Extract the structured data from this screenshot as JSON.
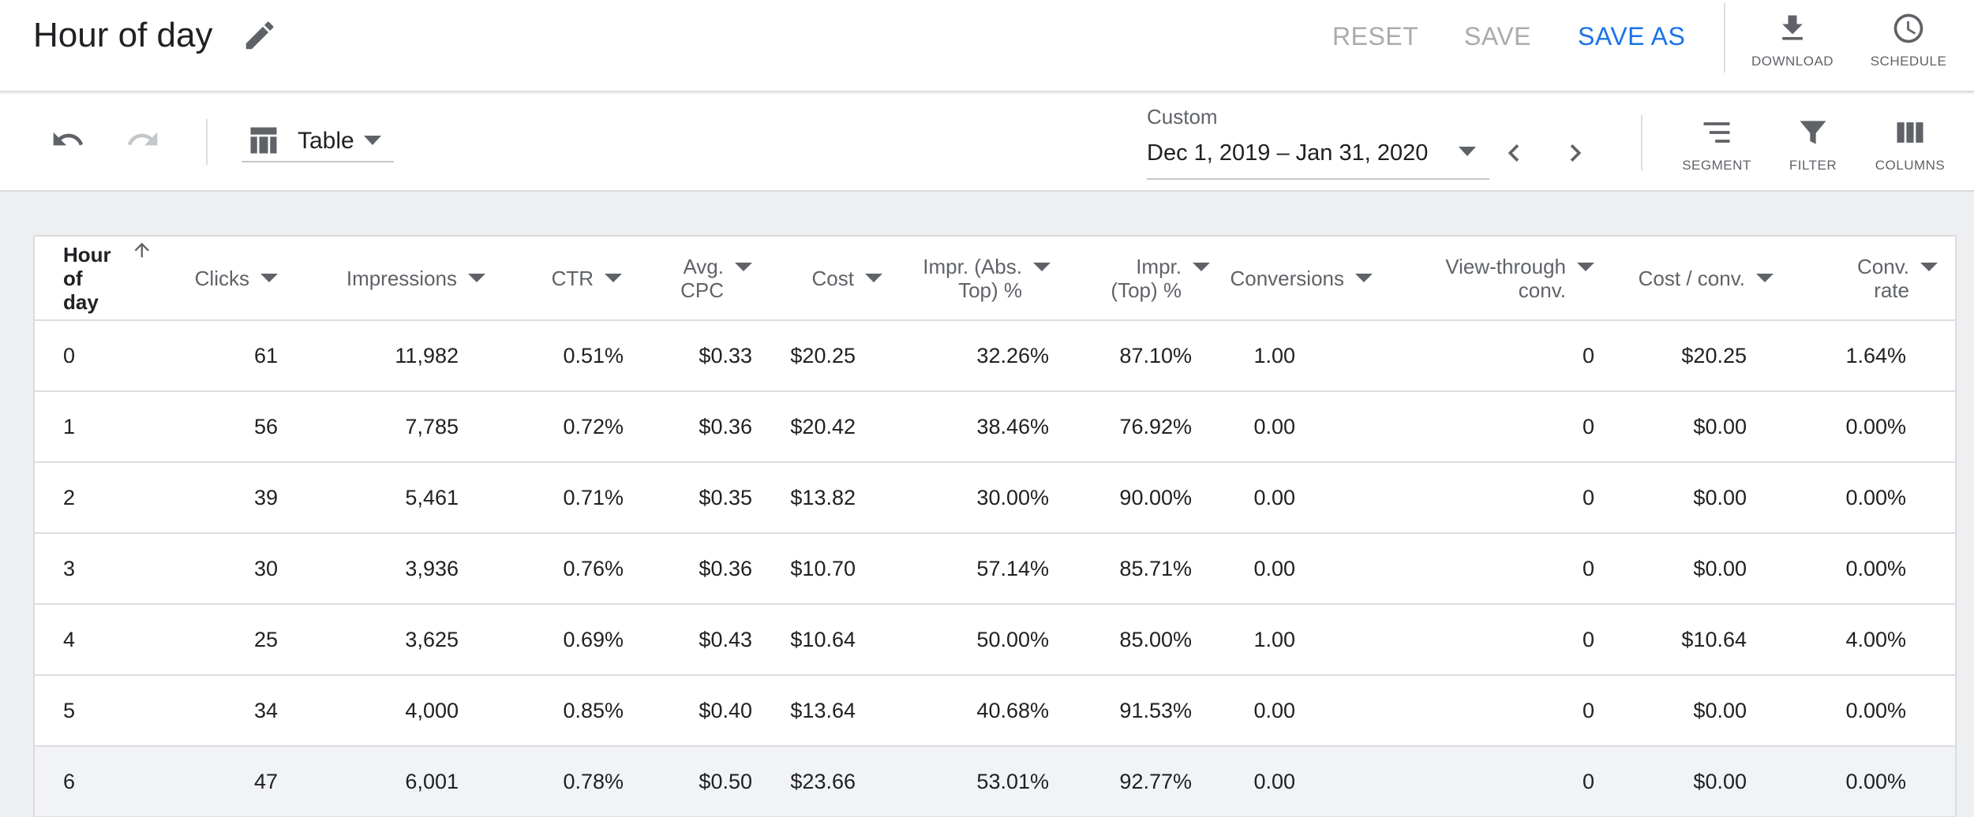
{
  "header": {
    "title": "Hour of day",
    "reset_label": "RESET",
    "save_label": "SAVE",
    "save_as_label": "SAVE AS",
    "download_label": "DOWNLOAD",
    "schedule_label": "SCHEDULE"
  },
  "toolbar": {
    "view_label": "Table",
    "date_range_label": "Custom",
    "date_range_value": "Dec 1, 2019 – Jan 31, 2020",
    "segment_label": "SEGMENT",
    "filter_label": "FILTER",
    "columns_label": "COLUMNS"
  },
  "table": {
    "columns": [
      {
        "line1": "Hour",
        "line2": "of day"
      },
      {
        "line1": "Clicks",
        "line2": ""
      },
      {
        "line1": "Impressions",
        "line2": ""
      },
      {
        "line1": "CTR",
        "line2": ""
      },
      {
        "line1": "Avg.",
        "line2": "CPC"
      },
      {
        "line1": "Cost",
        "line2": ""
      },
      {
        "line1": "Impr. (Abs.",
        "line2": "Top) %"
      },
      {
        "line1": "Impr.",
        "line2": "(Top) %"
      },
      {
        "line1": "Conversions",
        "line2": ""
      },
      {
        "line1": "View-through",
        "line2": "conv."
      },
      {
        "line1": "Cost / conv.",
        "line2": ""
      },
      {
        "line1": "Conv.",
        "line2": "rate"
      }
    ],
    "rows": [
      [
        "0",
        "61",
        "11,982",
        "0.51%",
        "$0.33",
        "$20.25",
        "32.26%",
        "87.10%",
        "1.00",
        "0",
        "$20.25",
        "1.64%"
      ],
      [
        "1",
        "56",
        "7,785",
        "0.72%",
        "$0.36",
        "$20.42",
        "38.46%",
        "76.92%",
        "0.00",
        "0",
        "$0.00",
        "0.00%"
      ],
      [
        "2",
        "39",
        "5,461",
        "0.71%",
        "$0.35",
        "$13.82",
        "30.00%",
        "90.00%",
        "0.00",
        "0",
        "$0.00",
        "0.00%"
      ],
      [
        "3",
        "30",
        "3,936",
        "0.76%",
        "$0.36",
        "$10.70",
        "57.14%",
        "85.71%",
        "0.00",
        "0",
        "$0.00",
        "0.00%"
      ],
      [
        "4",
        "25",
        "3,625",
        "0.69%",
        "$0.43",
        "$10.64",
        "50.00%",
        "85.00%",
        "1.00",
        "0",
        "$10.64",
        "4.00%"
      ],
      [
        "5",
        "34",
        "4,000",
        "0.85%",
        "$0.40",
        "$13.64",
        "40.68%",
        "91.53%",
        "0.00",
        "0",
        "$0.00",
        "0.00%"
      ],
      [
        "6",
        "47",
        "6,001",
        "0.78%",
        "$0.50",
        "$23.66",
        "53.01%",
        "92.77%",
        "0.00",
        "0",
        "$0.00",
        "0.00%"
      ]
    ]
  },
  "colors": {
    "accent": "#1a73e8",
    "disabled_text": "#a8abae",
    "icon": "#5f6368"
  }
}
